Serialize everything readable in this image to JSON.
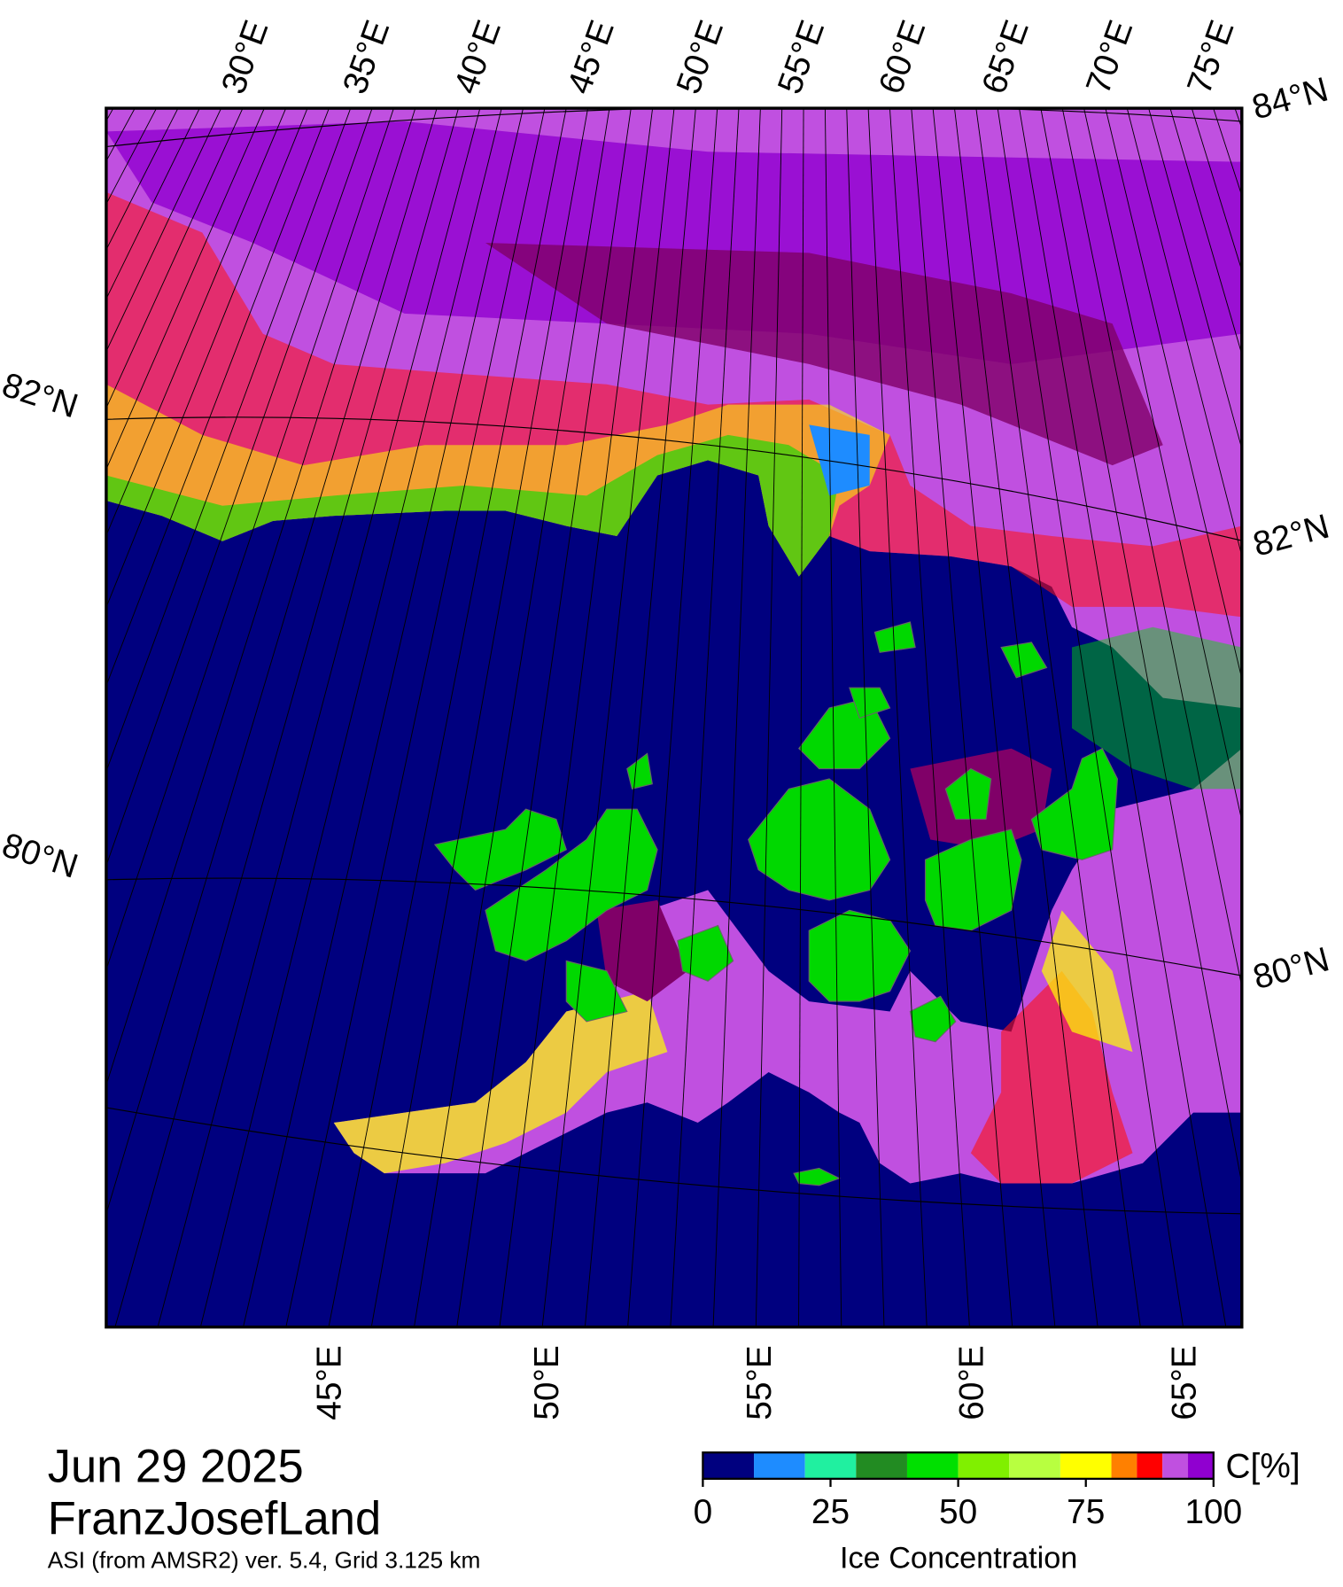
{
  "title": "Jun 29 2025",
  "region": "FranzJosefLand",
  "subtitle": "ASI (from AMSR2) ver. 5.4,  Grid 3.125 km",
  "map": {
    "top_lon_labels": [
      "30°E",
      "35°E",
      "40°E",
      "45°E",
      "50°E",
      "55°E",
      "60°E",
      "65°E",
      "70°E",
      "75°E"
    ],
    "bottom_lon_labels": [
      "45°E",
      "50°E",
      "55°E",
      "60°E",
      "65°E"
    ],
    "left_lat_labels": [
      "82°N",
      "80°N"
    ],
    "right_lat_labels": [
      "84°N",
      "82°N",
      "80°N"
    ]
  },
  "colorbar": {
    "label": "Ice Concentration",
    "unit": "C[%]",
    "lim": [
      0,
      100
    ],
    "bins": [
      0,
      10,
      20,
      30,
      40,
      50,
      60,
      70,
      80,
      85,
      90,
      95,
      100
    ],
    "colors": [
      "#00007f",
      "#1e8cff",
      "#20f0a0",
      "#228b22",
      "#00e000",
      "#80f000",
      "#b8ff40",
      "#ffff00",
      "#ff8000",
      "#ff0000",
      "#c050e0",
      "#9000d0"
    ],
    "ticks": [
      0,
      25,
      50,
      75,
      100
    ]
  }
}
